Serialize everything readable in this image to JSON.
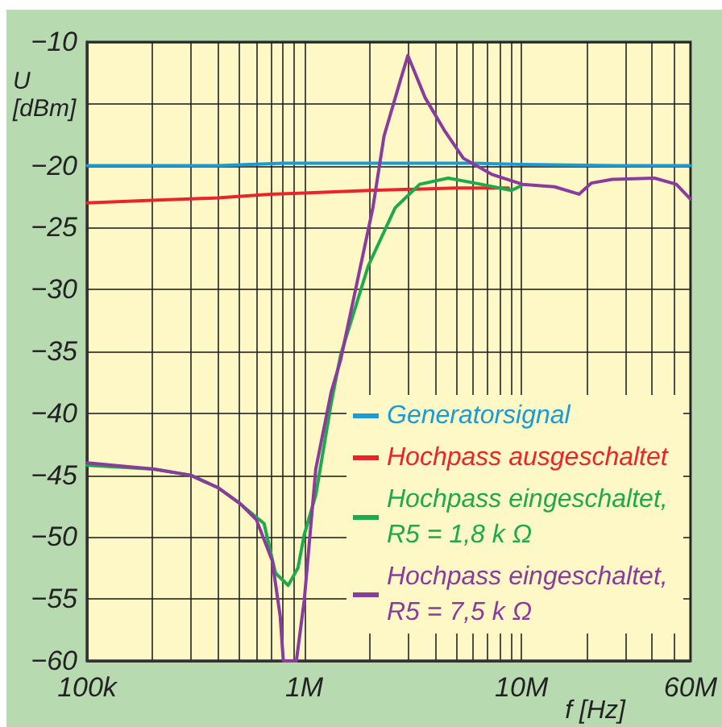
{
  "chart_data": {
    "type": "line",
    "xlabel": "f [Hz]",
    "ylabel": "U [dBm]",
    "log": "x",
    "xlim": [
      100000,
      60000000
    ],
    "xticks": [
      {
        "value": 100000,
        "label": "100k"
      },
      {
        "value": 200000,
        "label": null
      },
      {
        "value": 300000,
        "label": null
      },
      {
        "value": 400000,
        "label": null
      },
      {
        "value": 500000,
        "label": null
      },
      {
        "value": 600000,
        "label": null
      },
      {
        "value": 700000,
        "label": null
      },
      {
        "value": 800000,
        "label": null
      },
      {
        "value": 900000,
        "label": null
      },
      {
        "value": 1000000,
        "label": "1M"
      },
      {
        "value": 2000000,
        "label": null
      },
      {
        "value": 3000000,
        "label": null
      },
      {
        "value": 4000000,
        "label": null
      },
      {
        "value": 5000000,
        "label": null
      },
      {
        "value": 6000000,
        "label": null
      },
      {
        "value": 7000000,
        "label": null
      },
      {
        "value": 8000000,
        "label": null
      },
      {
        "value": 9000000,
        "label": null
      },
      {
        "value": 10000000,
        "label": "10M"
      },
      {
        "value": 20000000,
        "label": null
      },
      {
        "value": 30000000,
        "label": null
      },
      {
        "value": 40000000,
        "label": null
      },
      {
        "value": 50000000,
        "label": null
      },
      {
        "value": 60000000,
        "label": "60M"
      }
    ],
    "ylim": [
      -60,
      -10
    ],
    "yticks": [
      {
        "value": -60,
        "label": "−60"
      },
      {
        "value": -55,
        "label": "−55"
      },
      {
        "value": -50,
        "label": "−50"
      },
      {
        "value": -45,
        "label": "−45"
      },
      {
        "value": -40,
        "label": "−40"
      },
      {
        "value": -35,
        "label": "−35"
      },
      {
        "value": -30,
        "label": "−30"
      },
      {
        "value": -25,
        "label": "−25"
      },
      {
        "value": -20,
        "label": "−20"
      },
      {
        "value": -15,
        "label": null
      },
      {
        "value": -10,
        "label": "−10"
      }
    ],
    "grid": true,
    "legend": "bottom right",
    "marker": "none",
    "line_style": "solid",
    "series": [
      {
        "name": "Generatorsignal",
        "color": "#1a9ad6",
        "x": [
          100000,
          400000,
          800000,
          1500000,
          3000000,
          6000000,
          10000000,
          30000000,
          60000000
        ],
        "values": [
          -20,
          -20,
          -19.8,
          -19.8,
          -19.8,
          -19.8,
          -19.9,
          -20,
          -20
        ]
      },
      {
        "name": "Hochpass ausgeschaltet",
        "color": "#e8262a",
        "x": [
          100000,
          200000,
          400000,
          700000,
          1000000,
          2000000,
          5000000,
          8700000
        ],
        "values": [
          -23,
          -22.8,
          -22.6,
          -22.3,
          -22.2,
          -22,
          -21.8,
          -21.8
        ]
      },
      {
        "name": "Hochpass eingeschaltet, R5 = 1,8 k Ω",
        "color": "#1daa4a",
        "x": [
          100000,
          203000,
          300000,
          400000,
          507000,
          602000,
          653000,
          737000,
          843000,
          935000,
          1000000,
          1130000,
          1330000,
          1470000,
          1970000,
          2620000,
          3400000,
          4600000,
          6100000,
          9000000,
          10000000
        ],
        "values": [
          -44.2,
          -44.5,
          -45,
          -46,
          -47.3,
          -48.4,
          -48.9,
          -52.9,
          -53.9,
          -52.5,
          -49.8,
          -46.6,
          -39.2,
          -35.3,
          -28.1,
          -23.4,
          -21.5,
          -21,
          -21.4,
          -22,
          -21.6
        ]
      },
      {
        "name": "Hochpass eingeschaltet, R5 = 7,5 k Ω",
        "color": "#8a3c9c",
        "x": [
          100000,
          203000,
          300000,
          400000,
          507000,
          602000,
          712000,
          775000,
          801000,
          920000,
          1000000,
          1130000,
          1330000,
          1470000,
          2070000,
          2330000,
          2760000,
          3000000,
          3600000,
          4400000,
          5400000,
          7300000,
          10100000,
          14200000,
          18400000,
          21000000,
          26200000,
          41000000,
          51600000,
          60000000
        ],
        "values": [
          -44,
          -44.5,
          -45,
          -46,
          -47.3,
          -48.6,
          -51.9,
          -56.4,
          -60,
          -60,
          -55.1,
          -44.5,
          -38.3,
          -35.7,
          -23.4,
          -17.6,
          -13.2,
          -11.1,
          -14.5,
          -17.1,
          -19.4,
          -20.7,
          -21.5,
          -21.7,
          -22.3,
          -21.4,
          -21.1,
          -21,
          -21.5,
          -22.7
        ]
      }
    ]
  }
}
